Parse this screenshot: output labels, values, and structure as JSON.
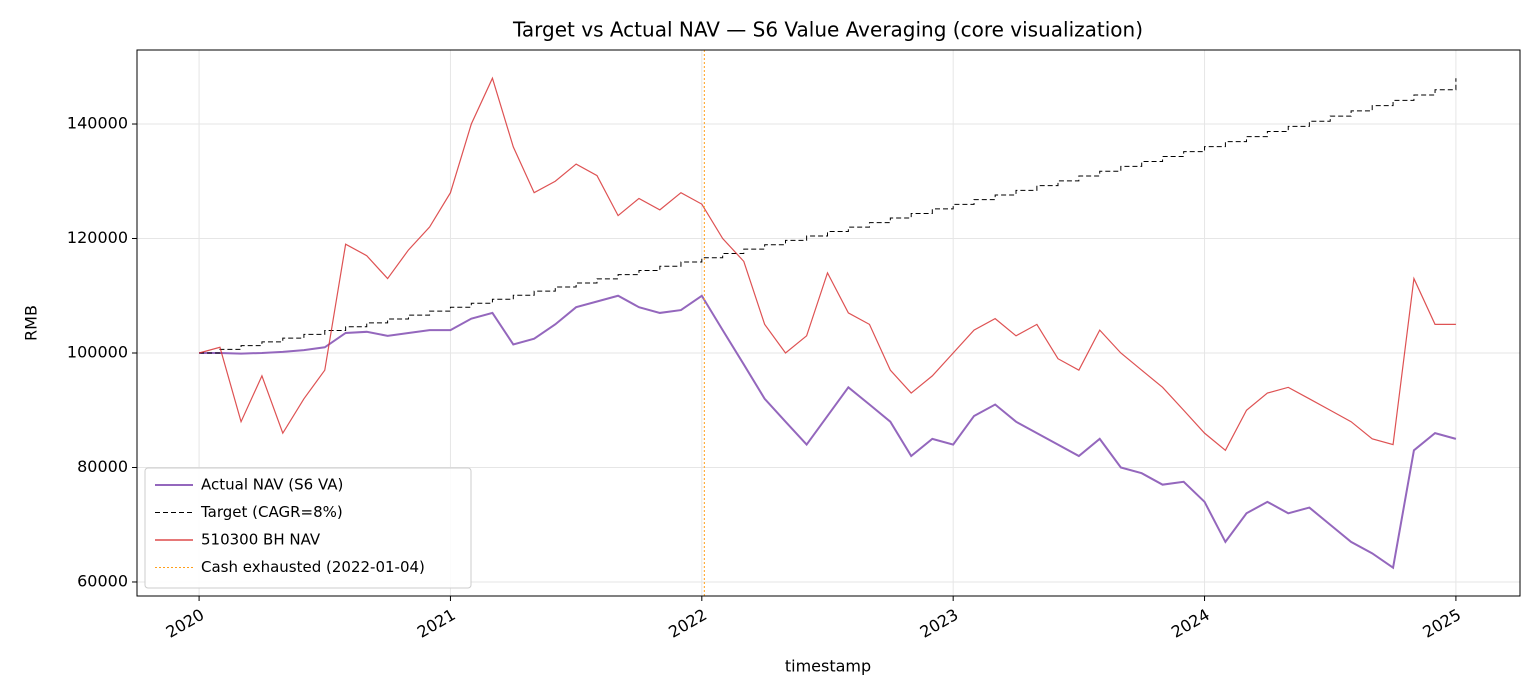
{
  "chart_data": {
    "type": "line",
    "title": "Target vs Actual NAV — S6 Value Averaging (core visualization)",
    "x_label": "timestamp",
    "y_label": "RMB",
    "x": [
      2020,
      2020.083,
      2020.167,
      2020.25,
      2020.333,
      2020.417,
      2020.5,
      2020.583,
      2020.667,
      2020.75,
      2020.833,
      2020.917,
      2021,
      2021.083,
      2021.167,
      2021.25,
      2021.333,
      2021.417,
      2021.5,
      2021.583,
      2021.667,
      2021.75,
      2021.833,
      2021.917,
      2022,
      2022.083,
      2022.167,
      2022.25,
      2022.333,
      2022.417,
      2022.5,
      2022.583,
      2022.667,
      2022.75,
      2022.833,
      2022.917,
      2023,
      2023.083,
      2023.167,
      2023.25,
      2023.333,
      2023.417,
      2023.5,
      2023.583,
      2023.667,
      2023.75,
      2023.833,
      2023.917,
      2024,
      2024.083,
      2024.167,
      2024.25,
      2024.333,
      2024.417,
      2024.5,
      2024.583,
      2024.667,
      2024.75,
      2024.833,
      2024.917,
      2025
    ],
    "series": [
      {
        "name": "Actual NAV (S6 VA)",
        "color": "#9467bd",
        "style": "solid",
        "width": 2,
        "values": [
          100000,
          100000,
          99900,
          100000,
          100200,
          100500,
          101000,
          103500,
          103700,
          103000,
          103500,
          104000,
          104000,
          106000,
          107000,
          101500,
          102500,
          105000,
          108000,
          109000,
          110000,
          108000,
          107000,
          107500,
          110000,
          104000,
          98000,
          92000,
          88000,
          84000,
          89000,
          94000,
          91000,
          88000,
          82000,
          85000,
          84000,
          89000,
          91000,
          88000,
          86000,
          84000,
          82000,
          85000,
          80000,
          79000,
          77000,
          77500,
          74000,
          67000,
          72000,
          74000,
          72000,
          73000,
          70000,
          67000,
          65000,
          62500,
          83000,
          86000,
          85000
        ]
      },
      {
        "name": "Target (CAGR=8%)",
        "color": "#000000",
        "style": "dashed",
        "width": 1,
        "drawstyle": "steps-post",
        "values": [
          100000,
          100643,
          101291,
          101943,
          102600,
          103260,
          103923,
          104592,
          105265,
          105943,
          106625,
          107311,
          108000,
          108695,
          109394,
          110098,
          110808,
          111521,
          112237,
          112958,
          113686,
          114418,
          115154,
          115895,
          116640,
          117391,
          118146,
          118906,
          119672,
          120442,
          121217,
          121997,
          122782,
          123573,
          124368,
          125168,
          125971,
          126782,
          127598,
          128419,
          129245,
          130076,
          130913,
          131756,
          132604,
          133457,
          134316,
          135180,
          136049,
          136925,
          137806,
          138693,
          139586,
          140483,
          141387,
          142298,
          143213,
          144134,
          145062,
          145996,
          148000
        ]
      },
      {
        "name": "510300 BH NAV",
        "color": "#d62728",
        "style": "solid",
        "width": 1.2,
        "opacity": 0.8,
        "values": [
          100000,
          101000,
          88000,
          96000,
          86000,
          92000,
          97000,
          119000,
          117000,
          113000,
          118000,
          122000,
          128000,
          140000,
          148000,
          136000,
          128000,
          130000,
          133000,
          131000,
          124000,
          127000,
          125000,
          128000,
          126000,
          120000,
          116000,
          105000,
          100000,
          103000,
          114000,
          107000,
          105000,
          97000,
          93000,
          96000,
          100000,
          104000,
          106000,
          103000,
          105000,
          99000,
          97000,
          104000,
          100000,
          97000,
          94000,
          90000,
          86000,
          83000,
          90000,
          93000,
          94000,
          92000,
          90000,
          88000,
          85000,
          84000,
          113000,
          105000,
          105000
        ]
      },
      {
        "name": "Cash exhausted (2022-01-04)",
        "color": "#ff9f1a",
        "style": "dotted",
        "width": 1,
        "x_value": 2022.01
      }
    ],
    "xlim": [
      2019.753,
      2025.255
    ],
    "xticks": [
      2020,
      2021,
      2022,
      2023,
      2024,
      2025
    ],
    "ylim": [
      57550,
      152930
    ],
    "yticks": [
      60000,
      80000,
      100000,
      120000,
      140000
    ],
    "grid": true,
    "legend": "lower left"
  }
}
